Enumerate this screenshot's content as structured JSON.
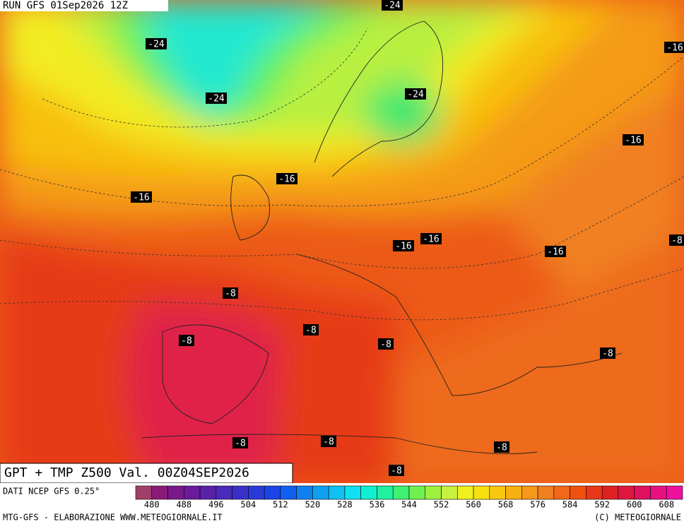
{
  "header": {
    "run": "RUN GFS 01Sep2026 12Z",
    "title": "GPT + TMP Z500 Val. 00Z04SEP2026"
  },
  "contour_labels": [
    "-24",
    "-24",
    "-24",
    "-24",
    "-16",
    "-16",
    "-16",
    "-16",
    "-16",
    "-16",
    "-16",
    "-8",
    "-8",
    "-8",
    "-8",
    "-8",
    "-8",
    "-8",
    "-8",
    "-8",
    "-8",
    "-8"
  ],
  "legend": {
    "source": "DATI NCEP GFS 0.25°",
    "ticks": [
      "480",
      "488",
      "496",
      "504",
      "512",
      "520",
      "528",
      "536",
      "544",
      "552",
      "560",
      "568",
      "576",
      "584",
      "592",
      "600",
      "608"
    ],
    "colors": [
      "#a0406a",
      "#8a1a78",
      "#7a1a8a",
      "#6a1a9a",
      "#5a20a8",
      "#4a2ab8",
      "#3a30c8",
      "#2a3ad8",
      "#1a44e8",
      "#1060f0",
      "#1080f0",
      "#10a0f0",
      "#10c0f0",
      "#10e0f0",
      "#10f0d0",
      "#20f0a0",
      "#40f070",
      "#70f050",
      "#a0f040",
      "#c8f040",
      "#f0f020",
      "#f8e010",
      "#f8c810",
      "#f8b010",
      "#f89818",
      "#f08020",
      "#f06818",
      "#f05010",
      "#e83818",
      "#e02020",
      "#e01840",
      "#e01060",
      "#e81080",
      "#f010a0"
    ]
  },
  "footer": {
    "left": "MTG-GFS - ELABORAZIONE WWW.METEOGIORNALE.IT",
    "right": "(C) METEOGIORNALE"
  }
}
